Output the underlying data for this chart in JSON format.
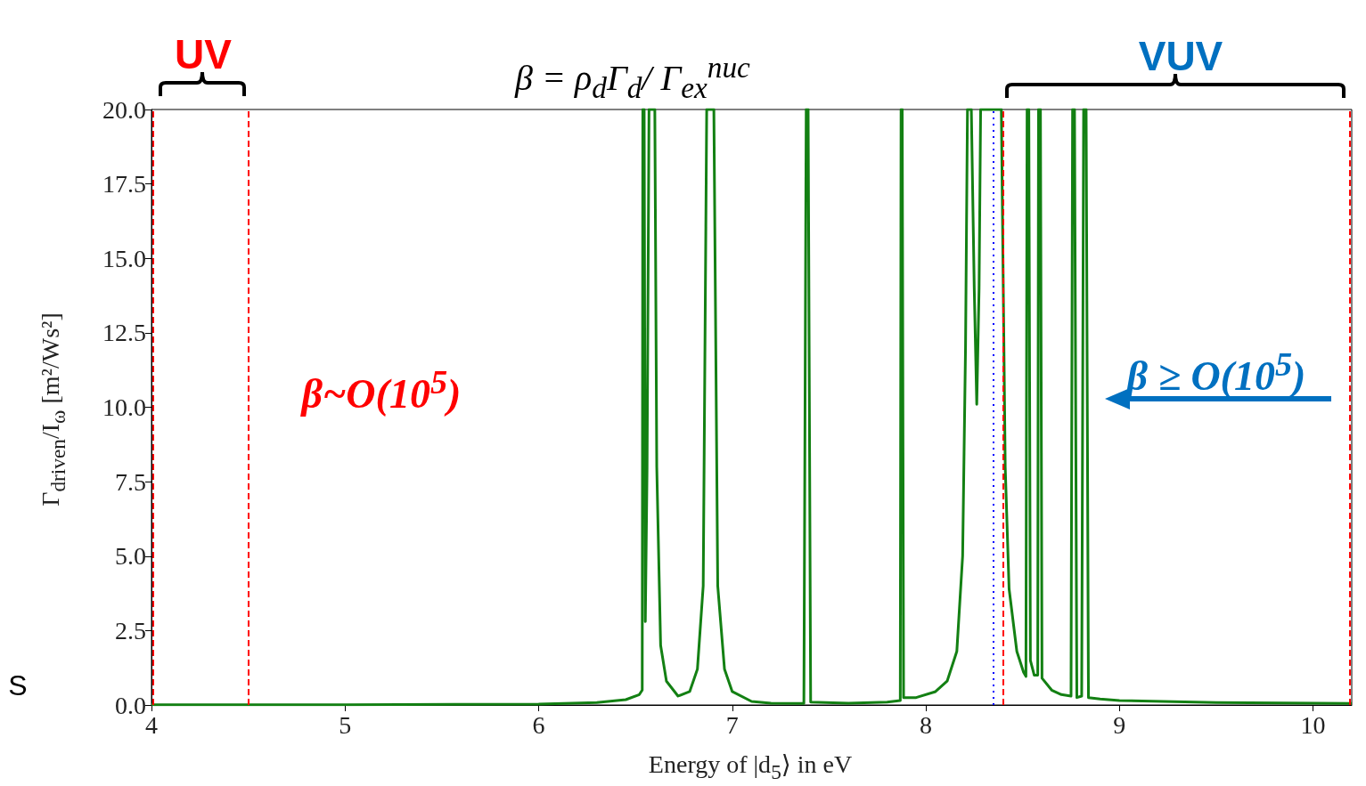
{
  "chart_data": {
    "type": "line",
    "xlabel": "Energy of |d$_{5}$⟩ in eV",
    "ylabel": "Γ$_{driven}$/I$_{ω}$ [m²/Ws²]",
    "annotations": [
      "UV",
      "VUV",
      "β = ρ$_{d}$Γ$_{d}$/ Γ$_{ex}$$^{nuc}$",
      "β~O(10$^{5}$)",
      "β ≥ O(10$^{5}$)",
      "S"
    ],
    "xlim": [
      4,
      10.2
    ],
    "xticks": [
      4,
      5,
      6,
      7,
      8,
      9,
      10
    ],
    "ylim": [
      0,
      20
    ],
    "yticks": [
      {
        "value": 0,
        "label": "0.0"
      },
      {
        "value": 2.5,
        "label": "2.5"
      },
      {
        "value": 5,
        "label": "5.0"
      },
      {
        "value": 7.5,
        "label": "7.5"
      },
      {
        "value": 10,
        "label": "10.0"
      },
      {
        "value": 12.5,
        "label": "12.5"
      },
      {
        "value": 15,
        "label": "15.0"
      },
      {
        "value": 17.5,
        "label": "17.5"
      },
      {
        "value": 20,
        "label": "20.0"
      }
    ],
    "ref_lines": [
      {
        "axis": "x",
        "value": 4.01,
        "color": "#ff0000",
        "line_style": "dashed"
      },
      {
        "axis": "x",
        "value": 4.5,
        "color": "#ff0000",
        "line_style": "dashed"
      },
      {
        "axis": "x",
        "value": 8.4,
        "color": "#ff0000",
        "line_style": "dashed"
      },
      {
        "axis": "x",
        "value": 10.19,
        "color": "#ff0000",
        "line_style": "dashed"
      },
      {
        "axis": "x",
        "value": 8.35,
        "color": "#0000ff",
        "line_style": "dotted"
      }
    ],
    "series": [
      {
        "color": "#138013",
        "x": [
          4.0,
          5.0,
          6.0,
          6.3,
          6.45,
          6.52,
          6.535,
          6.538,
          6.545,
          6.551,
          6.56,
          6.57,
          6.6,
          6.61,
          6.63,
          6.66,
          6.72,
          6.78,
          6.82,
          6.85,
          6.868,
          6.905,
          6.925,
          6.96,
          7.0,
          7.1,
          7.2,
          7.37,
          7.382,
          7.392,
          7.405,
          7.6,
          7.8,
          7.868,
          7.872,
          7.878,
          7.885,
          7.95,
          8.05,
          8.11,
          8.16,
          8.19,
          8.205,
          8.215,
          8.235,
          8.25,
          8.263,
          8.275,
          8.283,
          8.297,
          8.39,
          8.41,
          8.43,
          8.47,
          8.505,
          8.517,
          8.523,
          8.532,
          8.54,
          8.56,
          8.578,
          8.582,
          8.592,
          8.6,
          8.65,
          8.7,
          8.75,
          8.758,
          8.768,
          8.78,
          8.805,
          8.815,
          8.828,
          8.84,
          8.9,
          9.0,
          9.5,
          10.2
        ],
        "values": [
          0.01,
          0.01,
          0.03,
          0.08,
          0.18,
          0.35,
          0.5,
          20,
          20,
          2.8,
          8,
          20,
          20,
          8,
          2,
          0.8,
          0.3,
          0.45,
          1.2,
          4,
          20,
          20,
          4,
          1.2,
          0.45,
          0.12,
          0.06,
          0.05,
          20,
          20,
          0.1,
          0.06,
          0.1,
          0.15,
          20,
          20,
          0.25,
          0.25,
          0.45,
          0.8,
          1.8,
          5,
          12,
          20,
          20,
          14,
          10.1,
          14,
          20,
          20,
          20,
          8,
          3.9,
          1.8,
          1.1,
          0.96,
          20,
          20,
          1.5,
          1.0,
          1.0,
          20,
          20,
          0.9,
          0.5,
          0.35,
          0.3,
          20,
          20,
          0.25,
          0.3,
          20,
          20,
          0.25,
          0.2,
          0.15,
          0.08,
          0.05
        ]
      }
    ]
  }
}
